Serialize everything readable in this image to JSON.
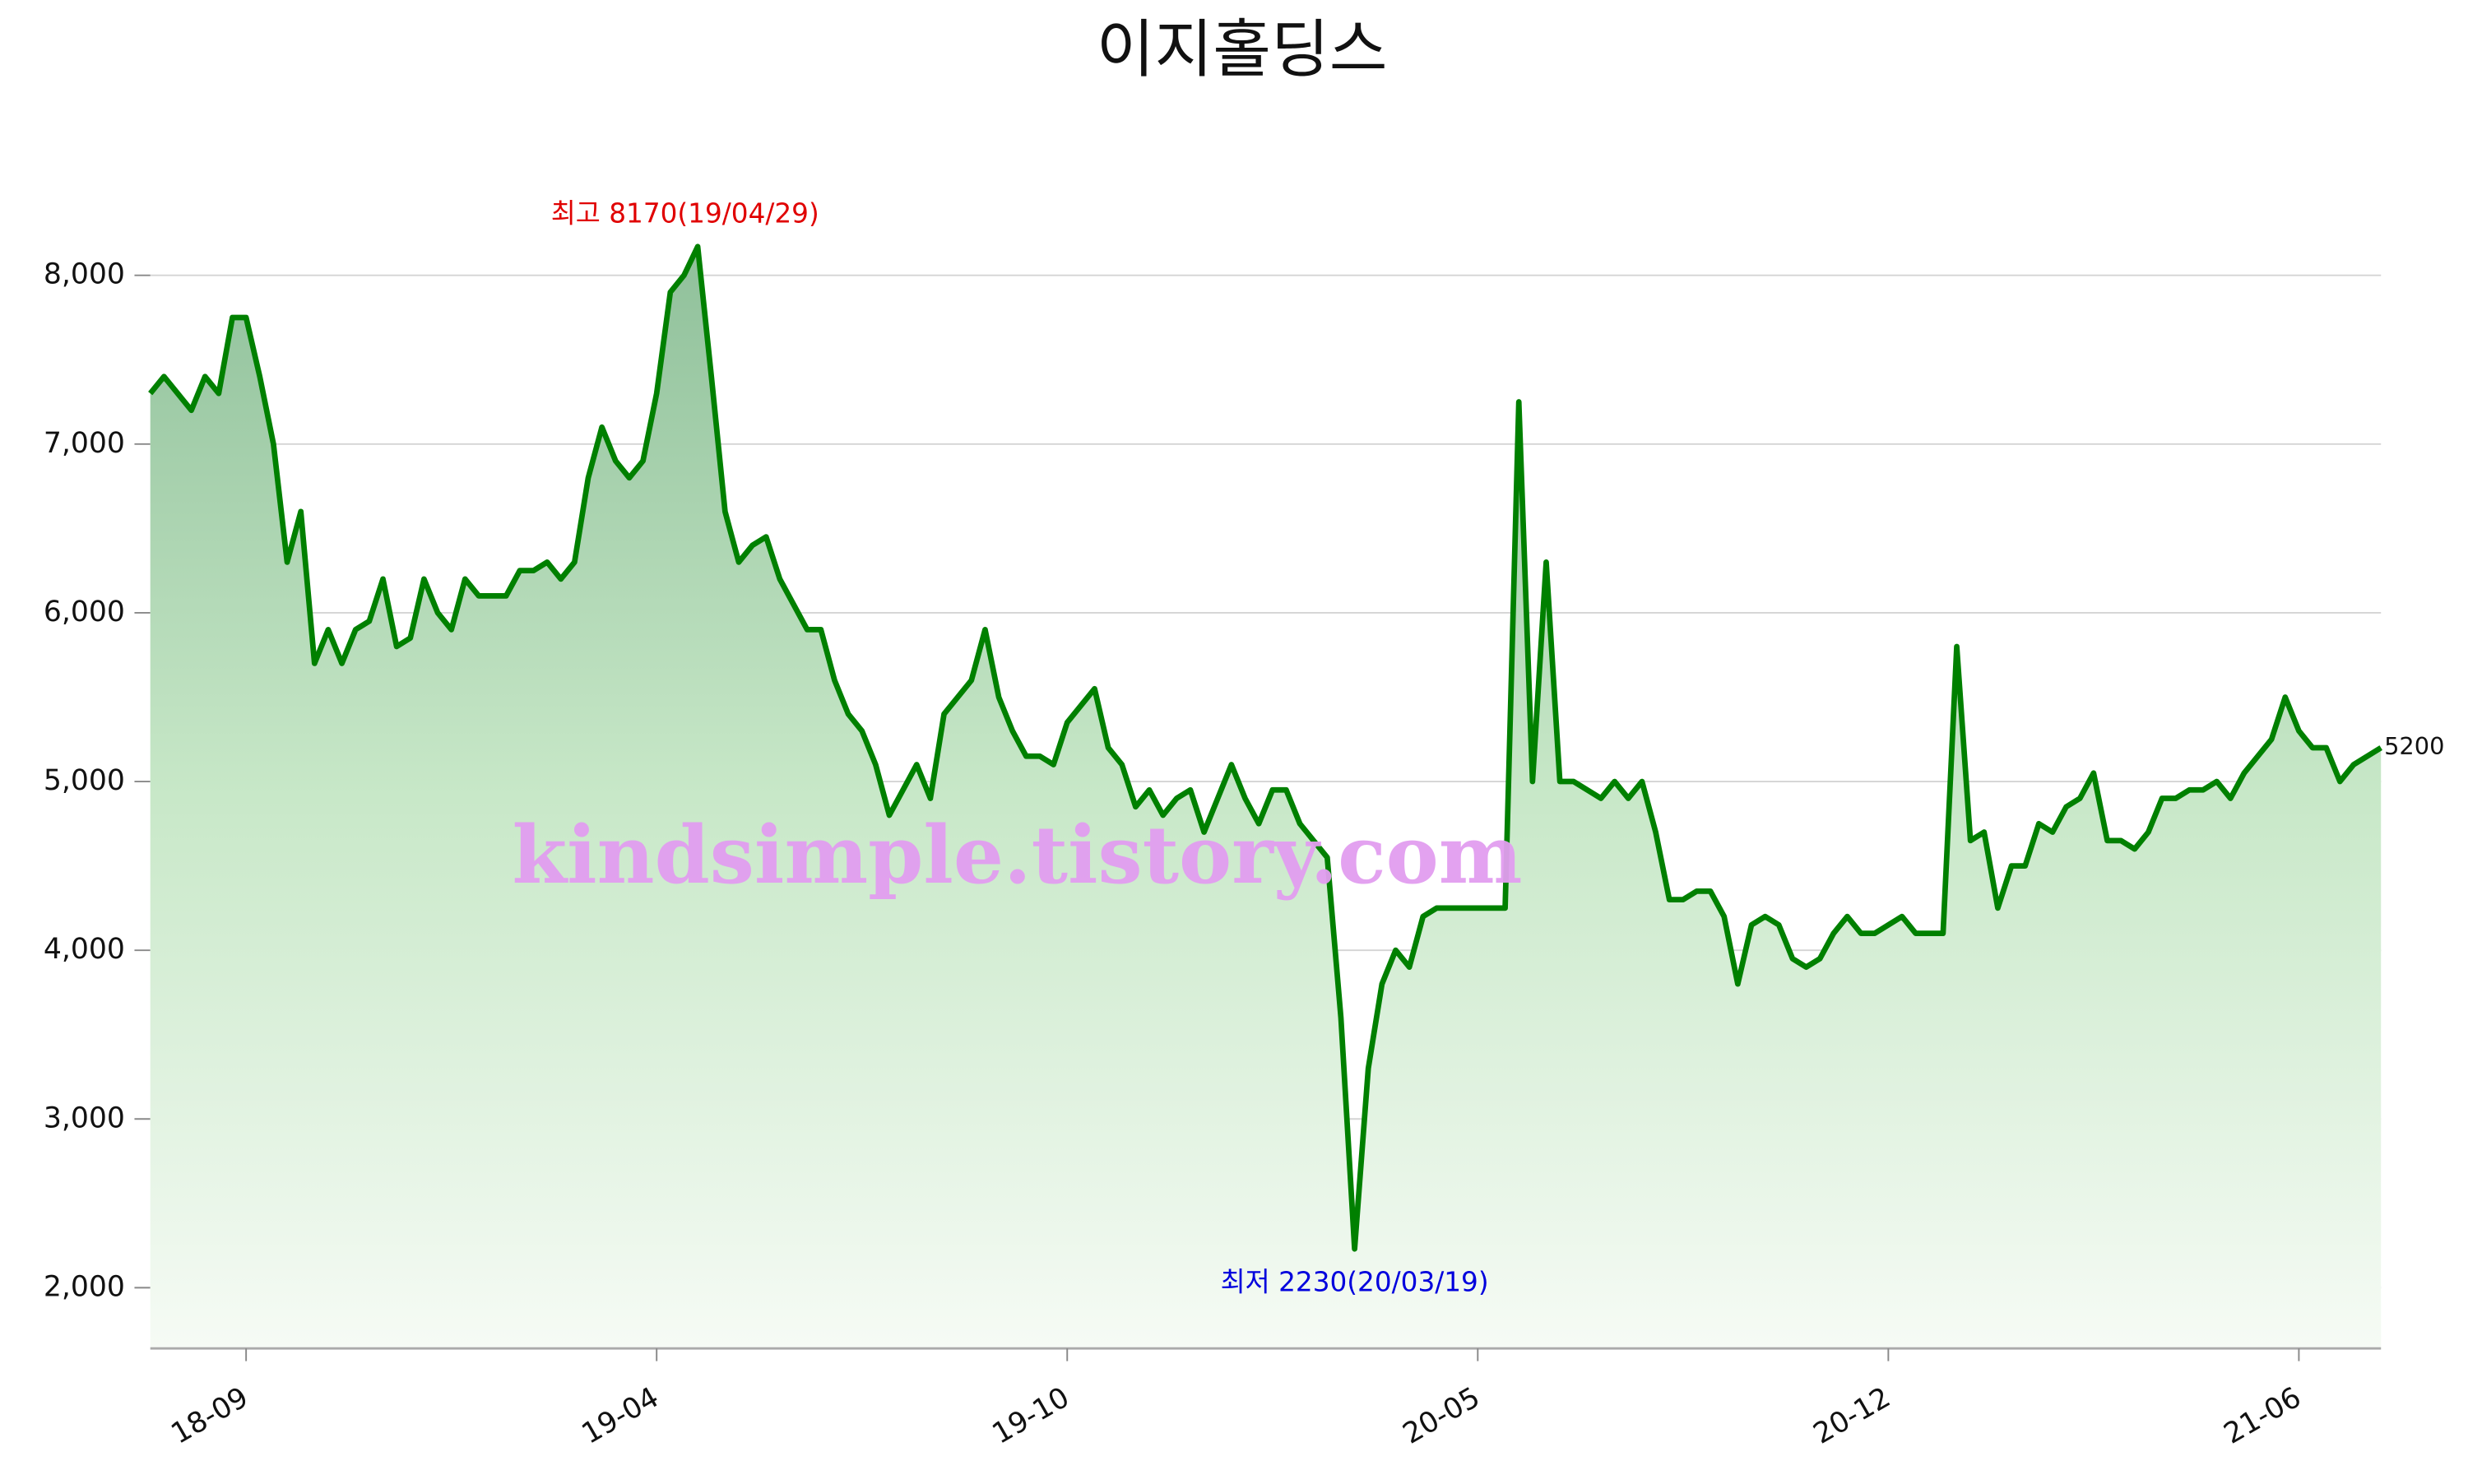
{
  "chart_data": {
    "type": "line",
    "title": "이지홀딩스",
    "color": "#008000",
    "watermark": "kindsimple.tistory.com",
    "high_label": "최고 8170(19/04/29)",
    "low_label": "최저 2230(20/03/19)",
    "last_label": "5200",
    "categories": [
      null,
      null,
      null,
      null,
      null,
      null,
      null,
      "18-09",
      null,
      null,
      null,
      null,
      null,
      null,
      null,
      null,
      null,
      null,
      null,
      null,
      null,
      null,
      null,
      null,
      null,
      null,
      null,
      null,
      null,
      null,
      null,
      null,
      null,
      null,
      null,
      null,
      null,
      "19-04",
      null,
      null,
      null,
      null,
      null,
      null,
      null,
      null,
      null,
      null,
      null,
      null,
      null,
      null,
      null,
      null,
      null,
      null,
      null,
      null,
      null,
      null,
      null,
      null,
      null,
      null,
      null,
      null,
      null,
      "19-10",
      null,
      null,
      null,
      null,
      null,
      null,
      null,
      null,
      null,
      null,
      null,
      null,
      null,
      null,
      null,
      null,
      null,
      null,
      null,
      null,
      null,
      null,
      null,
      null,
      null,
      null,
      null,
      null,
      null,
      "20-05",
      null,
      null,
      null,
      null,
      null,
      null,
      null,
      null,
      null,
      null,
      null,
      null,
      null,
      null,
      null,
      null,
      null,
      null,
      null,
      null,
      null,
      null,
      null,
      null,
      null,
      null,
      null,
      null,
      null,
      "20-12",
      null,
      null,
      null,
      null,
      null,
      null,
      null,
      null,
      null,
      null,
      null,
      null,
      null,
      null,
      null,
      null,
      null,
      null,
      null,
      null,
      null,
      null,
      null,
      null,
      null,
      null,
      null,
      null,
      null,
      "21-06",
      null,
      null,
      null,
      null,
      null,
      null
    ],
    "values": [
      7300,
      7400,
      7300,
      7200,
      7400,
      7300,
      7750,
      7750,
      7400,
      7000,
      6300,
      6600,
      5700,
      5900,
      5700,
      5900,
      5950,
      6200,
      5800,
      5850,
      6200,
      6000,
      5900,
      6200,
      6100,
      6100,
      6100,
      6250,
      6250,
      6300,
      6200,
      6300,
      6800,
      7100,
      6900,
      6800,
      6900,
      7300,
      7900,
      8000,
      8170,
      7400,
      6600,
      6300,
      6400,
      6450,
      6200,
      6050,
      5900,
      5900,
      5600,
      5400,
      5300,
      5100,
      4800,
      4950,
      5100,
      4900,
      5400,
      5500,
      5600,
      5900,
      5500,
      5300,
      5150,
      5150,
      5100,
      5350,
      5450,
      5550,
      5200,
      5100,
      4850,
      4950,
      4800,
      4900,
      4950,
      4700,
      4900,
      5100,
      4900,
      4750,
      4950,
      4950,
      4750,
      4650,
      4550,
      3600,
      2230,
      3300,
      3800,
      4000,
      3900,
      4200,
      4250,
      4250,
      4250,
      4250,
      4250,
      4250,
      7250,
      5000,
      6300,
      5000,
      5000,
      4950,
      4900,
      5000,
      4900,
      5000,
      4700,
      4300,
      4300,
      4350,
      4350,
      4200,
      3800,
      4150,
      4200,
      4150,
      3950,
      3900,
      3950,
      4100,
      4200,
      4100,
      4100,
      4150,
      4200,
      4100,
      4100,
      4100,
      5800,
      4650,
      4700,
      4250,
      4500,
      4500,
      4750,
      4700,
      4850,
      4900,
      5050,
      4650,
      4650,
      4600,
      4700,
      4900,
      4900,
      4950,
      4950,
      5000,
      4900,
      5050,
      5150,
      5250,
      5500,
      5300,
      5200,
      5200,
      5000,
      5100,
      5150,
      5200
    ],
    "ylim": [
      1640,
      8500
    ],
    "yticks": [
      {
        "value": 2000,
        "label": "2,000"
      },
      {
        "value": 3000,
        "label": "3,000"
      },
      {
        "value": 4000,
        "label": "4,000"
      },
      {
        "value": 5000,
        "label": "5,000"
      },
      {
        "value": 6000,
        "label": "6,000"
      },
      {
        "value": 7000,
        "label": "7,000"
      },
      {
        "value": 8000,
        "label": "8,000"
      }
    ],
    "grid": true
  }
}
